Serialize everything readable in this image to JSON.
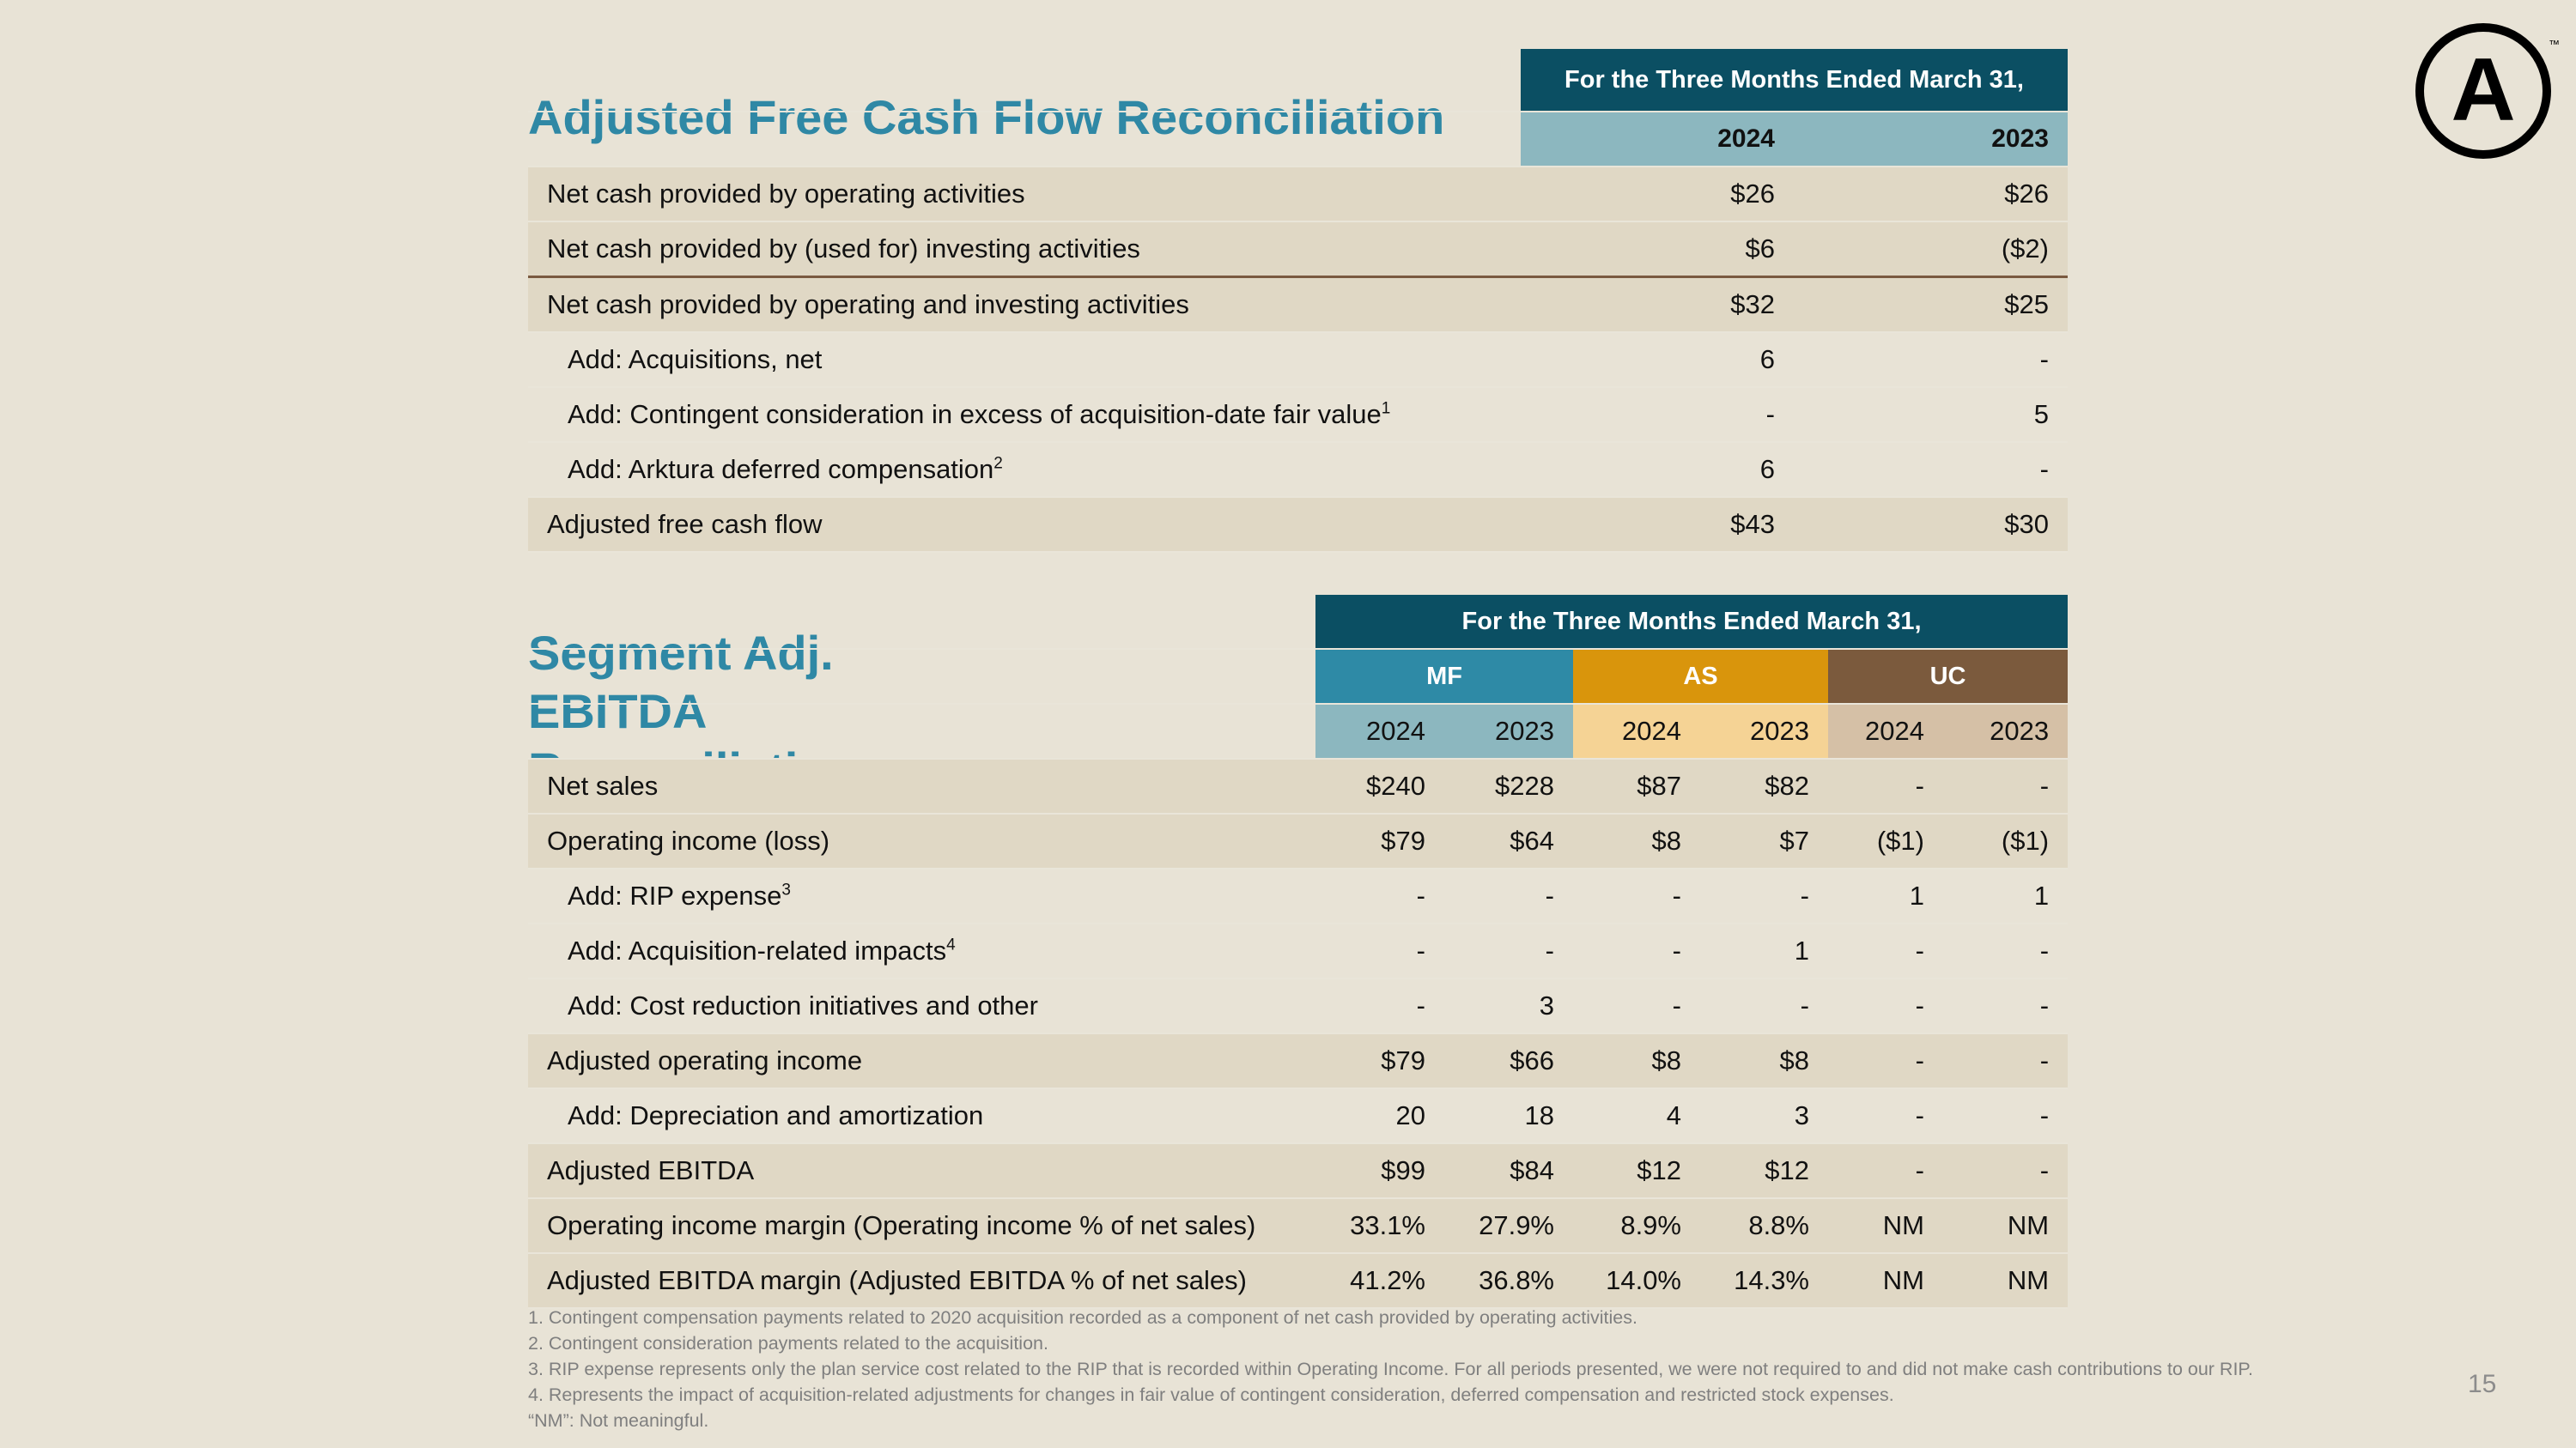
{
  "logo": {
    "mark": "A",
    "tm": "™"
  },
  "page_number": "15",
  "cash_flow": {
    "title": "Adjusted Free Cash Flow Reconciliation",
    "period_header": "For the Three Months Ended March 31,",
    "years": [
      "2024",
      "2023"
    ],
    "rows": [
      {
        "label": "Net cash provided by operating activities",
        "sup": "",
        "v2024": "$26",
        "v2023": "$26"
      },
      {
        "label": "Net cash provided by (used for) investing activities",
        "sup": "",
        "v2024": "$6",
        "v2023": "($2)"
      },
      {
        "label": "Net cash provided by operating and investing activities",
        "sup": "",
        "v2024": "$32",
        "v2023": "$25"
      },
      {
        "label": "Add: Acquisitions, net",
        "sup": "",
        "v2024": "6",
        "v2023": "-"
      },
      {
        "label": "Add: Contingent consideration in excess of acquisition-date fair value",
        "sup": "1",
        "v2024": "-",
        "v2023": "5"
      },
      {
        "label": "Add: Arktura deferred compensation",
        "sup": "2",
        "v2024": "6",
        "v2023": "-"
      },
      {
        "label": "Adjusted free cash flow",
        "sup": "",
        "v2024": "$43",
        "v2023": "$30"
      }
    ]
  },
  "segment": {
    "title": "Segment Adj. EBITDA Reconciliation",
    "period_header": "For the Three Months Ended March 31,",
    "segments": [
      {
        "name": "MF",
        "color": "#2e8aa6"
      },
      {
        "name": "AS",
        "color": "#d9950c"
      },
      {
        "name": "UC",
        "color": "#7b5a3d"
      }
    ],
    "years": [
      "2024",
      "2023"
    ],
    "rows": [
      {
        "label": "Net sales",
        "sup": "",
        "values": [
          "$240",
          "$228",
          "$87",
          "$82",
          "-",
          "-"
        ]
      },
      {
        "label": "Operating income (loss)",
        "sup": "",
        "values": [
          "$79",
          "$64",
          "$8",
          "$7",
          "($1)",
          "($1)"
        ]
      },
      {
        "label": "Add: RIP expense",
        "sup": "3",
        "values": [
          "-",
          "-",
          "-",
          "-",
          "1",
          "1"
        ]
      },
      {
        "label": "Add: Acquisition-related impacts",
        "sup": "4",
        "values": [
          "-",
          "-",
          "-",
          "1",
          "-",
          "-"
        ]
      },
      {
        "label": "Add: Cost reduction initiatives and other",
        "sup": "",
        "values": [
          "-",
          "3",
          "-",
          "-",
          "-",
          "-"
        ]
      },
      {
        "label": "Adjusted operating income",
        "sup": "",
        "values": [
          "$79",
          "$66",
          "$8",
          "$8",
          "-",
          "-"
        ]
      },
      {
        "label": "Add: Depreciation and amortization",
        "sup": "",
        "values": [
          "20",
          "18",
          "4",
          "3",
          "-",
          "-"
        ]
      },
      {
        "label": "Adjusted EBITDA",
        "sup": "",
        "values": [
          "$99",
          "$84",
          "$12",
          "$12",
          "-",
          "-"
        ]
      },
      {
        "label": "Operating income margin (Operating income % of net sales)",
        "sup": "",
        "values": [
          "33.1%",
          "27.9%",
          "8.9%",
          "8.8%",
          "NM",
          "NM"
        ]
      },
      {
        "label": "Adjusted EBITDA margin (Adjusted EBITDA % of net sales)",
        "sup": "",
        "values": [
          "41.2%",
          "36.8%",
          "14.0%",
          "14.3%",
          "NM",
          "NM"
        ]
      }
    ]
  },
  "footnotes": [
    "1.  Contingent compensation payments related to 2020 acquisition recorded as a component of net cash provided by operating activities.",
    "2.  Contingent consideration payments related to the acquisition.",
    "3.  RIP expense represents only the plan service cost related to the RIP that is recorded within Operating Income. For all periods presented, we were not required to and did not make cash contributions to our RIP.",
    "4.  Represents the impact of acquisition-related adjustments for changes in fair value of contingent consideration, deferred compensation and restricted stock expenses.",
    "“NM”: Not meaningful."
  ]
}
